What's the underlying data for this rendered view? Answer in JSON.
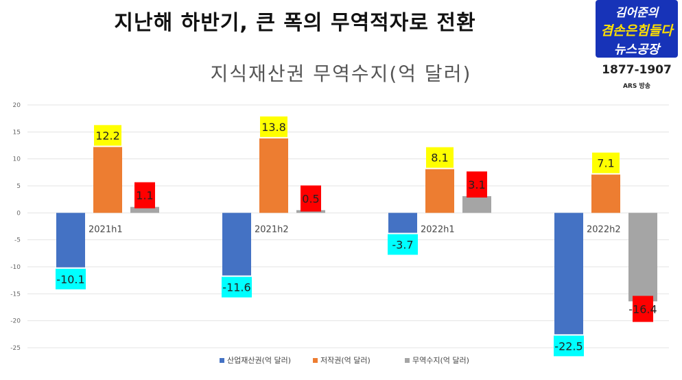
{
  "headline": "지난해 하반기, 큰 폭의 무역적자로 전환",
  "logo": {
    "line1": "김어준의",
    "line2": "겸손은힘들다",
    "line3": "뉴스공장"
  },
  "years": "1877-1907",
  "station": "ARS 방송",
  "colors": {
    "blue": "#4472c4",
    "orange": "#ed7d31",
    "gray": "#a5a5a5",
    "label_yellow": "#ffff00",
    "label_red": "#ff0000",
    "label_cyan": "#00ffff"
  },
  "chart_data": {
    "type": "bar",
    "title": "지식재산권 무역수지(억 달러)",
    "categories": [
      "2021h1",
      "2021h2",
      "2022h1",
      "2022h2"
    ],
    "series": [
      {
        "name": "산업재산권(억 달러)",
        "values": [
          -10.1,
          -11.6,
          -3.7,
          -22.5
        ],
        "labels": [
          "-10.1",
          "-11.6",
          "-3.7",
          "-22.5"
        ]
      },
      {
        "name": "저작권(억 달러)",
        "values": [
          12.2,
          13.8,
          8.1,
          7.1
        ],
        "labels": [
          "12.2",
          "13.8",
          "8.1",
          "7.1"
        ]
      },
      {
        "name": "무역수지(억 달러)",
        "values": [
          1.1,
          0.5,
          3.1,
          -16.4
        ],
        "labels": [
          "1.1",
          "0.5",
          "3.1",
          "-16.4"
        ]
      }
    ],
    "y_ticks": [
      "20",
      "15",
      "10",
      "5",
      "0",
      "-5",
      "-10",
      "-15",
      "-20",
      "-25"
    ],
    "ylim": [
      -25,
      20
    ],
    "grid": true,
    "legend": "bottom"
  }
}
